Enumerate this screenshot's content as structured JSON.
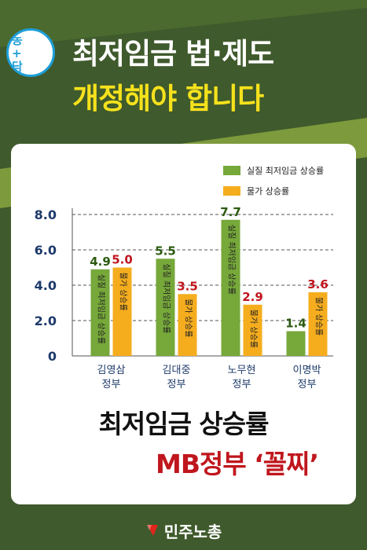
{
  "header": {
    "logo_glyphs": [
      "농",
      "+",
      "담"
    ],
    "logo_text": "",
    "line1": "최저임금 법·제도",
    "line2": "개정해야 합니다"
  },
  "legend": [
    {
      "label": "실질 최저임금 상승률",
      "color": "#76a83a"
    },
    {
      "label": "물가 상승률",
      "color": "#f5ad1e"
    }
  ],
  "colors": {
    "background": "#3f5a2c",
    "stripe": "#7d9a3c",
    "headline_accent": "#f6e21c",
    "wage_value_text": "#2b5a10",
    "price_value_text": "#c0161d",
    "emphasis_red": "#c0161d"
  },
  "chart_data": {
    "type": "bar",
    "title": "",
    "xlabel": "",
    "ylabel": "",
    "ylim": [
      0,
      8
    ],
    "yticks": [
      "0",
      "2.0",
      "4.0",
      "6.0",
      "8.0"
    ],
    "grid": "dashed horizontal",
    "categories": [
      {
        "line1": "김영삼",
        "line2": "정부"
      },
      {
        "line1": "김대중",
        "line2": "정부"
      },
      {
        "line1": "노무현",
        "line2": "정부"
      },
      {
        "line1": "이명박",
        "line2": "정부"
      }
    ],
    "series": [
      {
        "name": "실질 최저임금 상승률",
        "values": [
          4.9,
          5.5,
          7.7,
          1.4
        ],
        "value_labels": [
          "4.9",
          "5.5",
          "7.7",
          "1.4"
        ],
        "in_bar_text": "실질 최저임금 상승률",
        "color": "#76a83a"
      },
      {
        "name": "물가 상승률",
        "values": [
          5.0,
          3.5,
          2.9,
          3.6
        ],
        "value_labels": [
          "5.0",
          "3.5",
          "2.9",
          "3.6"
        ],
        "in_bar_text": "물가 상승률",
        "color": "#f5ad1e"
      }
    ]
  },
  "bottom": {
    "line1": "최저임금 상승률",
    "line2": "MB정부 ‘꼴찌’"
  },
  "footer": {
    "org_name": "민주노총"
  }
}
